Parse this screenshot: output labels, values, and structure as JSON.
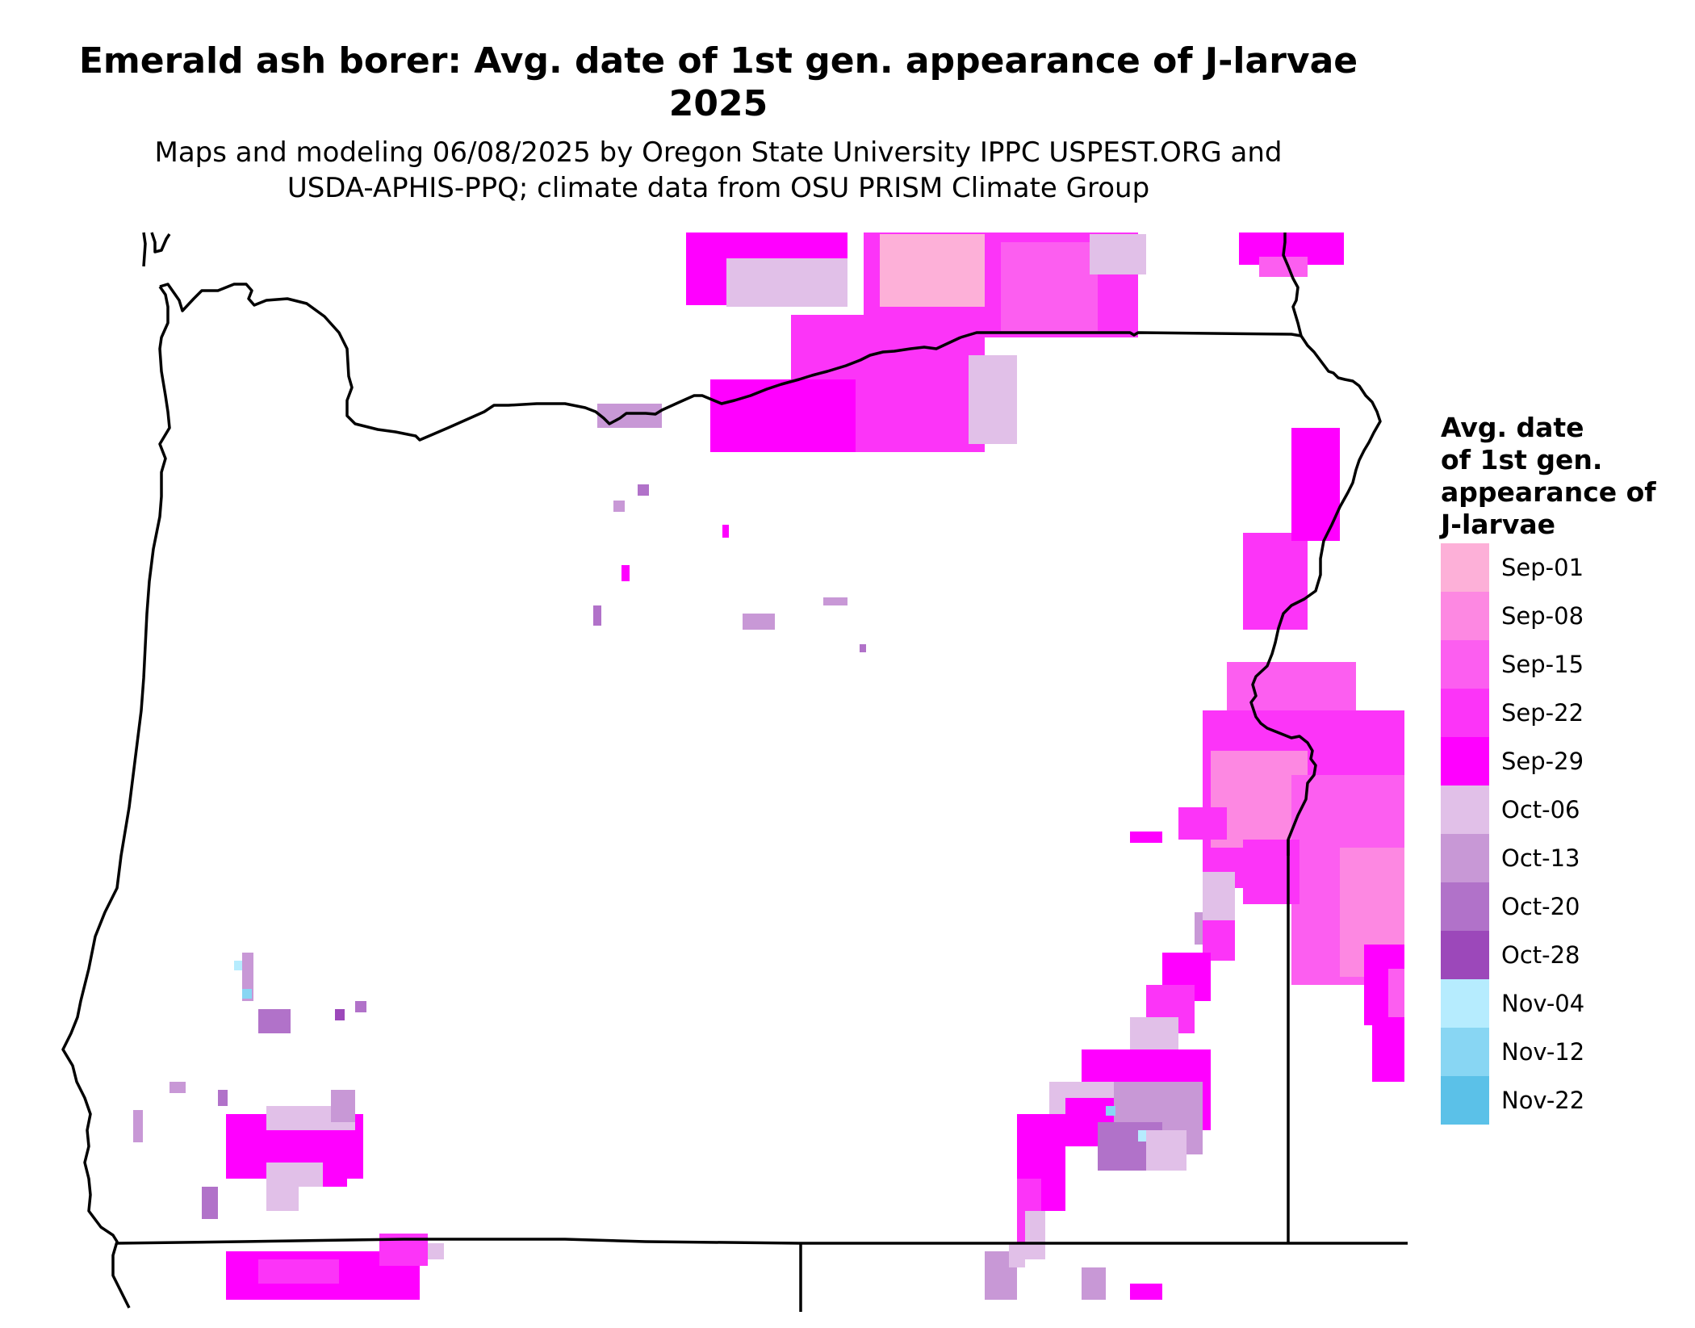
{
  "title": {
    "line1": "Emerald ash borer: Avg. date of 1st gen. appearance of J-larvae",
    "line2": "2025"
  },
  "subtitle": {
    "line1": "Maps and modeling 06/08/2025 by Oregon State University IPPC USPEST.ORG and",
    "line2": "USDA-APHIS-PPQ; climate data from OSU PRISM Climate Group"
  },
  "legend": {
    "title_lines": [
      "Avg. date",
      "of 1st gen.",
      "appearance of",
      "J-larvae"
    ],
    "items": [
      {
        "label": "Sep-01",
        "color": "#fdb0d8"
      },
      {
        "label": "Sep-08",
        "color": "#fd88e2"
      },
      {
        "label": "Sep-15",
        "color": "#fc5ef0"
      },
      {
        "label": "Sep-22",
        "color": "#fc34f8"
      },
      {
        "label": "Sep-29",
        "color": "#ff00ff"
      },
      {
        "label": "Oct-06",
        "color": "#e1c0e8"
      },
      {
        "label": "Oct-13",
        "color": "#c898d6"
      },
      {
        "label": "Oct-20",
        "color": "#b172c9"
      },
      {
        "label": "Oct-28",
        "color": "#9c48ba"
      },
      {
        "label": "Nov-04",
        "color": "#b6ecfe"
      },
      {
        "label": "Nov-12",
        "color": "#88d6f3"
      },
      {
        "label": "Nov-22",
        "color": "#5bc1e8"
      }
    ]
  },
  "map": {
    "region": "Oregon",
    "boundary_color": "#000000"
  }
}
